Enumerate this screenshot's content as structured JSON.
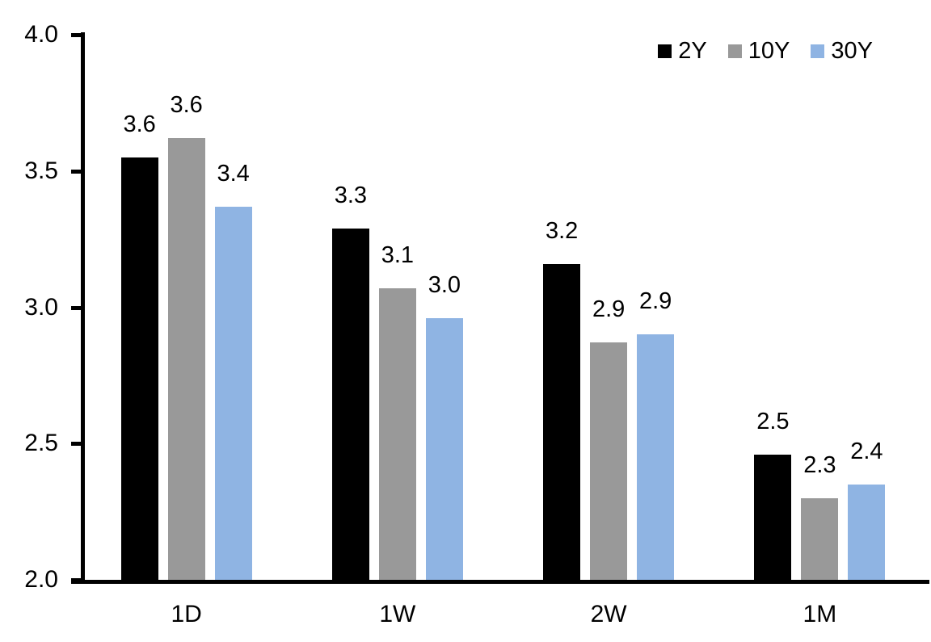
{
  "chart_data": {
    "type": "bar",
    "title": "",
    "categories": [
      "1D",
      "1W",
      "2W",
      "1M"
    ],
    "series": [
      {
        "name": "2Y",
        "color": "#000000",
        "values": [
          3.55,
          3.29,
          3.16,
          2.46
        ],
        "labels": [
          "3.6",
          "3.3",
          "3.2",
          "2.5"
        ]
      },
      {
        "name": "10Y",
        "color": "#999999",
        "values": [
          3.62,
          3.07,
          2.87,
          2.3
        ],
        "labels": [
          "3.6",
          "3.1",
          "2.9",
          "2.3"
        ]
      },
      {
        "name": "30Y",
        "color": "#8FB4E3",
        "values": [
          3.37,
          2.96,
          2.9,
          2.35
        ],
        "labels": [
          "3.4",
          "3.0",
          "2.9",
          "2.4"
        ]
      }
    ],
    "xlabel": "",
    "ylabel": "",
    "ylim": [
      2.0,
      4.0
    ],
    "yticks": [
      2.0,
      2.5,
      3.0,
      3.5,
      4.0
    ],
    "ytick_labels": [
      "2.0",
      "2.5",
      "3.0",
      "3.5",
      "4.0"
    ],
    "grid": false,
    "legend_position": "top-right",
    "axis_color": "#000000",
    "background_color": "#ffffff",
    "text_color": "#000000"
  }
}
